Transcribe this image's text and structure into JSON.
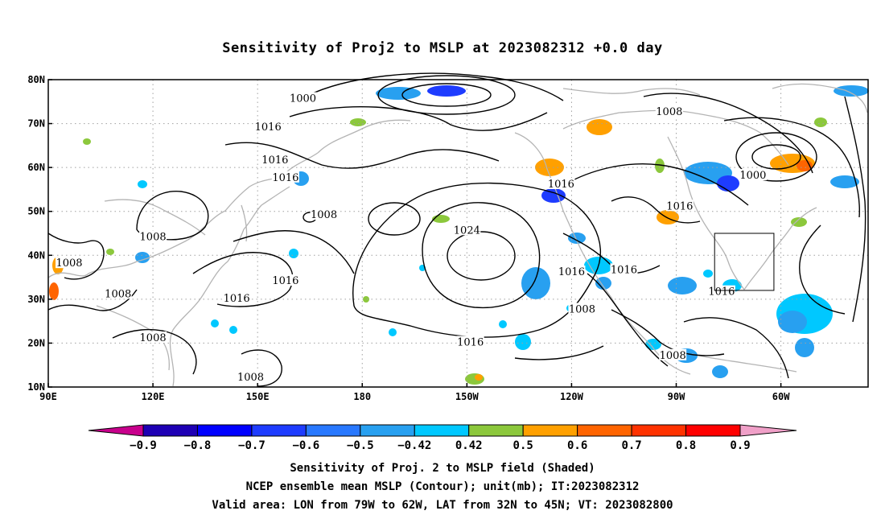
{
  "title": "Sensitivity of Proj2 to MSLP at 2023082312 +0.0 day",
  "map": {
    "lon_min": 90,
    "lon_max": 325,
    "lat_min": 10,
    "lat_max": 80,
    "lat_ticks": [
      {
        "value": 80,
        "label": "80N"
      },
      {
        "value": 70,
        "label": "70N"
      },
      {
        "value": 60,
        "label": "60N"
      },
      {
        "value": 50,
        "label": "50N"
      },
      {
        "value": 40,
        "label": "40N"
      },
      {
        "value": 30,
        "label": "30N"
      },
      {
        "value": 20,
        "label": "20N"
      },
      {
        "value": 10,
        "label": "10N"
      }
    ],
    "lon_ticks": [
      {
        "value": 90,
        "label": "90E"
      },
      {
        "value": 120,
        "label": "120E"
      },
      {
        "value": 150,
        "label": "150E"
      },
      {
        "value": 180,
        "label": "180"
      },
      {
        "value": 210,
        "label": "150W"
      },
      {
        "value": 240,
        "label": "120W"
      },
      {
        "value": 270,
        "label": "90W"
      },
      {
        "value": 300,
        "label": "60W"
      }
    ],
    "valid_box": {
      "lon_west": 281,
      "lon_east": 298,
      "lat_south": 32,
      "lat_north": 45
    },
    "contour_labels": [
      {
        "text": "1000",
        "lon": 163,
        "lat": 75.5
      },
      {
        "text": "1016",
        "lon": 153,
        "lat": 69
      },
      {
        "text": "1008",
        "lon": 268,
        "lat": 72.5
      },
      {
        "text": "1016",
        "lon": 155,
        "lat": 61.5
      },
      {
        "text": "1016",
        "lon": 158,
        "lat": 57.5
      },
      {
        "text": "1016",
        "lon": 237,
        "lat": 56
      },
      {
        "text": "1000",
        "lon": 292,
        "lat": 58
      },
      {
        "text": "1016",
        "lon": 271,
        "lat": 51
      },
      {
        "text": "1008",
        "lon": 120,
        "lat": 44
      },
      {
        "text": "1008",
        "lon": 169,
        "lat": 49
      },
      {
        "text": "1024",
        "lon": 210,
        "lat": 45.5
      },
      {
        "text": "1008",
        "lon": 96,
        "lat": 38
      },
      {
        "text": "1016",
        "lon": 158,
        "lat": 34
      },
      {
        "text": "1016",
        "lon": 240,
        "lat": 36
      },
      {
        "text": "1016",
        "lon": 255,
        "lat": 36.5
      },
      {
        "text": "1016",
        "lon": 144,
        "lat": 30
      },
      {
        "text": "1008",
        "lon": 110,
        "lat": 31
      },
      {
        "text": "1016",
        "lon": 283,
        "lat": 31.5
      },
      {
        "text": "1008",
        "lon": 243,
        "lat": 27.5
      },
      {
        "text": "1008",
        "lon": 120,
        "lat": 21
      },
      {
        "text": "1016",
        "lon": 211,
        "lat": 20
      },
      {
        "text": "1008",
        "lon": 269,
        "lat": 17
      },
      {
        "text": "1008",
        "lon": 148,
        "lat": 12
      }
    ],
    "contour_color": "#000000",
    "coast_color": "#b4b4b4",
    "grid_color": "#a0a0a0"
  },
  "colorbar": {
    "levels": [
      {
        "label": "−0.9",
        "color": "#1e00b4"
      },
      {
        "label": "−0.8",
        "color": "#0000ff"
      },
      {
        "label": "−0.7",
        "color": "#1e3cff"
      },
      {
        "label": "−0.6",
        "color": "#2878ff"
      },
      {
        "label": "−0.5",
        "color": "#28a0f0"
      },
      {
        "label": "−0.42",
        "color": "#00c8ff"
      },
      {
        "label": "0.42",
        "color": "#ffffff"
      },
      {
        "label": "0.5",
        "color": "#8cc83c"
      },
      {
        "label": "0.6",
        "color": "#ffa000"
      },
      {
        "label": "0.7",
        "color": "#ff6400"
      },
      {
        "label": "0.8",
        "color": "#ff3200"
      },
      {
        "label": "0.9",
        "color": "#ff0000"
      }
    ],
    "low_end_color": "#c8008c",
    "high_end_color": "#f0a0c8"
  },
  "shading_colors": {
    "neg_light": "#00c8ff",
    "neg_mid": "#28a0f0",
    "neg_deep": "#1e3cff",
    "pos_green": "#8cc83c",
    "pos_orange": "#ffa000",
    "pos_red": "#ff6400"
  },
  "footer": {
    "line1": "Sensitivity of Proj. 2 to MSLP field (Shaded)",
    "line2": "NCEP ensemble mean MSLP (Contour); unit(mb); IT:2023082312",
    "line3": "Valid area: LON from 79W to 62W, LAT from 32N to 45N; VT: 2023082800"
  }
}
